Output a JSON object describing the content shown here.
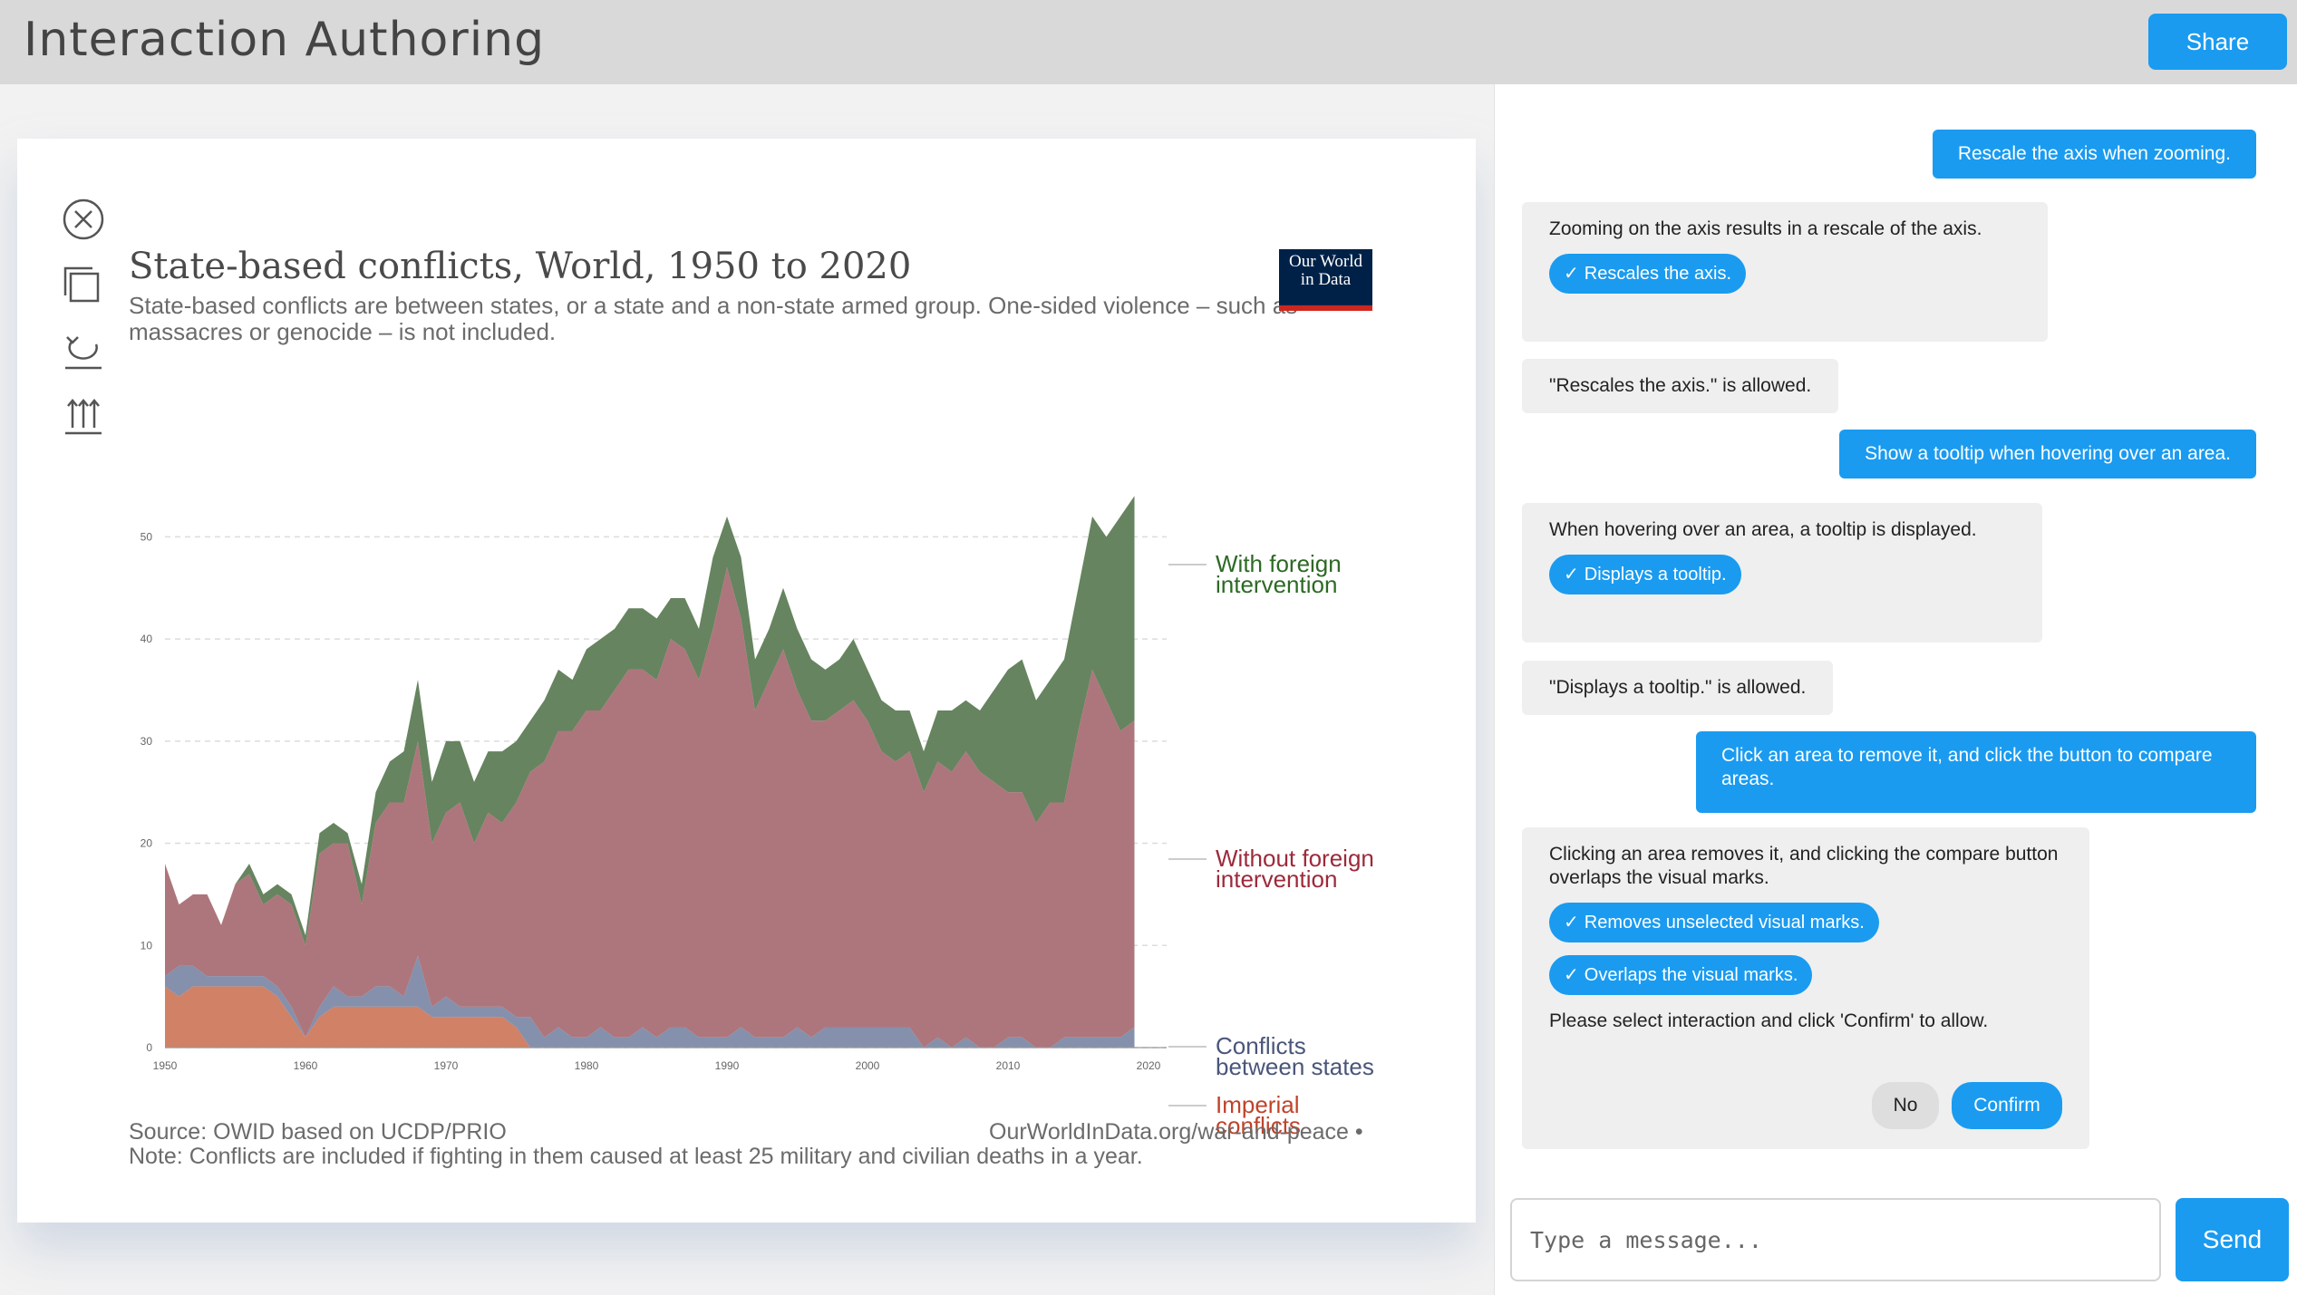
{
  "app": {
    "title": "Interaction Authoring",
    "share_label": "Share"
  },
  "toolbar": {
    "icons": [
      "close-icon",
      "copy-icon",
      "undo-icon",
      "upload-arrows-icon"
    ]
  },
  "chart": {
    "title": "State-based conflicts, World, 1950 to 2020",
    "subtitle": "State-based conflicts are between states, or a state and a non-state armed group. One-sided violence – such as massacres or genocide – is not included.",
    "logo_line1": "Our World",
    "logo_line2": "in Data",
    "source": "Source: OWID based on UCDP/PRIO",
    "url": "OurWorldInData.org/war-and-peace •",
    "note": "Note: Conflicts are included if fighting in them caused at least 25 military and civilian deaths in a year."
  },
  "chart_data": {
    "type": "area",
    "title": "State-based conflicts, World, 1950 to 2020",
    "stacked": true,
    "x": [
      1950,
      1951,
      1952,
      1953,
      1954,
      1955,
      1956,
      1957,
      1958,
      1959,
      1960,
      1961,
      1962,
      1963,
      1964,
      1965,
      1966,
      1967,
      1968,
      1969,
      1970,
      1971,
      1972,
      1973,
      1974,
      1975,
      1976,
      1977,
      1978,
      1979,
      1980,
      1981,
      1982,
      1983,
      1984,
      1985,
      1986,
      1987,
      1988,
      1989,
      1990,
      1991,
      1992,
      1993,
      1994,
      1995,
      1996,
      1997,
      1998,
      1999,
      2000,
      2001,
      2002,
      2003,
      2004,
      2005,
      2006,
      2007,
      2008,
      2009,
      2010,
      2011,
      2012,
      2013,
      2014,
      2015,
      2016,
      2017,
      2018,
      2019
    ],
    "xticks": [
      1950,
      1960,
      1970,
      1980,
      1990,
      2000,
      2010,
      2020
    ],
    "yticks": [
      0,
      10,
      20,
      30,
      40,
      50
    ],
    "ylim": [
      0,
      55
    ],
    "xlim": [
      1950,
      2020
    ],
    "grid": true,
    "series": [
      {
        "name": "Imperial conflicts",
        "color": "#cf7a5e",
        "values": [
          6,
          5,
          6,
          6,
          6,
          6,
          6,
          6,
          5,
          3,
          1,
          3,
          4,
          4,
          4,
          4,
          4,
          4,
          4,
          3,
          3,
          3,
          3,
          3,
          3,
          2,
          0,
          0,
          0,
          0,
          0,
          0,
          0,
          0,
          0,
          0,
          0,
          0,
          0,
          0,
          0,
          0,
          0,
          0,
          0,
          0,
          0,
          0,
          0,
          0,
          0,
          0,
          0,
          0,
          0,
          0,
          0,
          0,
          0,
          0,
          0,
          0,
          0,
          0,
          0,
          0,
          0,
          0,
          0,
          0
        ]
      },
      {
        "name": "Conflicts between states",
        "color": "#7e8aa8",
        "values": [
          1,
          3,
          2,
          1,
          1,
          1,
          1,
          1,
          1,
          1,
          0,
          1,
          2,
          1,
          1,
          2,
          2,
          1,
          5,
          1,
          2,
          1,
          1,
          1,
          1,
          1,
          3,
          1,
          2,
          1,
          1,
          2,
          1,
          1,
          2,
          1,
          2,
          2,
          1,
          1,
          1,
          2,
          1,
          1,
          1,
          2,
          1,
          2,
          2,
          2,
          2,
          2,
          2,
          2,
          0,
          1,
          0,
          1,
          0,
          0,
          1,
          1,
          0,
          0,
          1,
          1,
          1,
          1,
          1,
          2
        ]
      },
      {
        "name": "Without foreign intervention",
        "color": "#a96f75",
        "values": [
          11,
          6,
          7,
          8,
          5,
          9,
          10,
          7,
          9,
          10,
          9,
          15,
          14,
          15,
          9,
          16,
          18,
          19,
          21,
          16,
          18,
          20,
          16,
          19,
          18,
          21,
          24,
          27,
          29,
          30,
          32,
          31,
          34,
          36,
          35,
          35,
          38,
          37,
          35,
          40,
          46,
          40,
          32,
          35,
          38,
          33,
          31,
          30,
          31,
          32,
          30,
          27,
          26,
          27,
          25,
          27,
          27,
          28,
          27,
          26,
          24,
          24,
          22,
          24,
          23,
          30,
          36,
          33,
          30,
          30
        ]
      },
      {
        "name": "With foreign intervention",
        "color": "#5e7d56",
        "values": [
          0,
          0,
          0,
          0,
          0,
          0,
          1,
          1,
          1,
          1,
          1,
          2,
          2,
          1,
          2,
          3,
          4,
          5,
          6,
          6,
          7,
          6,
          6,
          6,
          7,
          6,
          5,
          6,
          6,
          5,
          6,
          7,
          6,
          6,
          6,
          6,
          4,
          5,
          5,
          7,
          5,
          6,
          5,
          5,
          6,
          6,
          6,
          5,
          5,
          6,
          5,
          5,
          5,
          4,
          4,
          5,
          6,
          5,
          6,
          9,
          12,
          13,
          12,
          12,
          14,
          14,
          15,
          16,
          21,
          22
        ]
      }
    ],
    "legend_position": "right-labels"
  },
  "chat": {
    "messages": [
      {
        "role": "user",
        "text": "Rescale the axis when zooming."
      },
      {
        "role": "bot",
        "text": "Zooming on the axis results in a rescale of the axis.",
        "chips": [
          "Rescales the axis."
        ]
      },
      {
        "role": "bot",
        "text": "\"Rescales the axis.\" is allowed."
      },
      {
        "role": "user",
        "text": "Show a tooltip when hovering over an area."
      },
      {
        "role": "bot",
        "text": "When hovering over an area, a tooltip is displayed.",
        "chips": [
          "Displays a tooltip."
        ]
      },
      {
        "role": "bot",
        "text": "\"Displays a tooltip.\" is allowed."
      },
      {
        "role": "user",
        "text": "Click an area to remove it, and click the button to compare areas."
      },
      {
        "role": "bot",
        "text": "Clicking an area removes it, and clicking the compare button overlaps the visual marks.",
        "chips": [
          "Removes unselected visual marks.",
          "Overlaps the visual marks."
        ],
        "prompt": "Please select interaction and click 'Confirm' to allow.",
        "no_label": "No",
        "confirm_label": "Confirm"
      }
    ],
    "input_placeholder": "Type a message...",
    "send_label": "Send"
  }
}
